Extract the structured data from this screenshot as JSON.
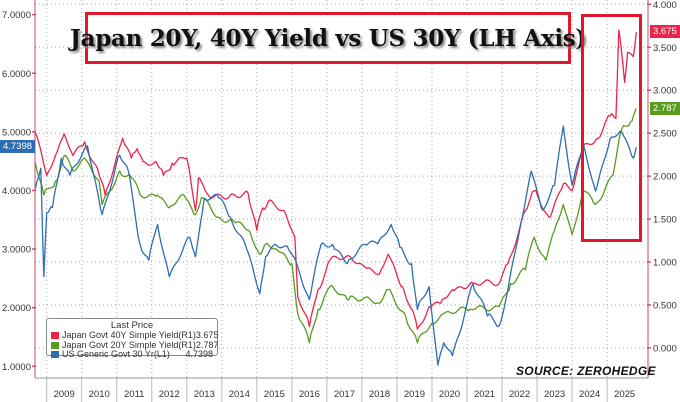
{
  "chart_data": {
    "type": "line",
    "title": "Japan 20Y, 40Y Yield vs US 30Y (LH Axis)",
    "source": "SOURCE: ZEROHEDGE",
    "legend": {
      "header": "Last Price",
      "placement": "bottom-left"
    },
    "x_ticks": [
      "2009",
      "2010",
      "2011",
      "2012",
      "2013",
      "2014",
      "2015",
      "2016",
      "2017",
      "2018",
      "2019",
      "2020",
      "2021",
      "2022",
      "2023",
      "2024",
      "2025"
    ],
    "xlim": [
      "2008-09",
      "2026-03"
    ],
    "left_axis": {
      "ylim": [
        0.8,
        7.25
      ],
      "ticks": [
        "1.0000",
        "2.0000",
        "3.0000",
        "4.0000",
        "5.0000",
        "6.0000",
        "7.0000"
      ]
    },
    "right_axis": {
      "ylim": [
        -0.35,
        4.05
      ],
      "ticks": [
        "0.000",
        "0.500",
        "1.000",
        "1.500",
        "2.000",
        "2.500",
        "3.000",
        "3.500",
        "4.000"
      ]
    },
    "grid": true,
    "highlight_box": {
      "from": "2024-05",
      "to": "2025-12",
      "color": "#e0182d"
    },
    "series": [
      {
        "name": "Japan Govt 40Y Simple Yield",
        "axis_label": "(R1)",
        "last": "3.675",
        "axis": "right",
        "color": "#e8264a",
        "points": [
          [
            "2008-09",
            2.52
          ],
          [
            "2009-01",
            2.01
          ],
          [
            "2009-04",
            2.24
          ],
          [
            "2009-07",
            2.49
          ],
          [
            "2009-10",
            2.24
          ],
          [
            "2010-02",
            2.4
          ],
          [
            "2010-07",
            2.01
          ],
          [
            "2010-09",
            1.78
          ],
          [
            "2011-03",
            2.44
          ],
          [
            "2011-06",
            2.21
          ],
          [
            "2011-08",
            2.32
          ],
          [
            "2011-10",
            2.17
          ],
          [
            "2012-03",
            2.13
          ],
          [
            "2012-05",
            2.01
          ],
          [
            "2012-08",
            2.15
          ],
          [
            "2013-01",
            2.21
          ],
          [
            "2013-04",
            1.6
          ],
          [
            "2013-05",
            1.98
          ],
          [
            "2013-09",
            1.75
          ],
          [
            "2014-04",
            1.78
          ],
          [
            "2014-10",
            1.8
          ],
          [
            "2015-01",
            1.37
          ],
          [
            "2015-03",
            1.63
          ],
          [
            "2015-05",
            1.71
          ],
          [
            "2015-11",
            1.55
          ],
          [
            "2016-02",
            1.29
          ],
          [
            "2016-03",
            0.6
          ],
          [
            "2016-07",
            0.25
          ],
          [
            "2016-10",
            0.68
          ],
          [
            "2017-02",
            1.02
          ],
          [
            "2017-09",
            1.06
          ],
          [
            "2018-02",
            0.94
          ],
          [
            "2018-07",
            0.86
          ],
          [
            "2018-10",
            1.09
          ],
          [
            "2019-03",
            0.71
          ],
          [
            "2019-07",
            0.37
          ],
          [
            "2019-08",
            0.22
          ],
          [
            "2019-12",
            0.48
          ],
          [
            "2020-04",
            0.52
          ],
          [
            "2020-08",
            0.68
          ],
          [
            "2021-03",
            0.75
          ],
          [
            "2021-12",
            0.75
          ],
          [
            "2022-03",
            0.98
          ],
          [
            "2022-09",
            1.6
          ],
          [
            "2022-12",
            1.83
          ],
          [
            "2023-05",
            1.52
          ],
          [
            "2023-10",
            1.91
          ],
          [
            "2024-01",
            1.83
          ],
          [
            "2024-05",
            2.36
          ],
          [
            "2024-10",
            2.44
          ],
          [
            "2025-02",
            2.7
          ],
          [
            "2025-04",
            2.67
          ],
          [
            "2025-05",
            3.7
          ],
          [
            "2025-07",
            3.09
          ],
          [
            "2025-08",
            3.44
          ],
          [
            "2025-10",
            3.39
          ],
          [
            "2025-11",
            3.675
          ]
        ]
      },
      {
        "name": "Japan Govt 20Y Simple Yield",
        "axis_label": "(R1)",
        "last": "2.787",
        "axis": "right",
        "color": "#5a9a1e",
        "points": [
          [
            "2008-09",
            2.17
          ],
          [
            "2008-12",
            1.78
          ],
          [
            "2009-04",
            1.94
          ],
          [
            "2009-07",
            2.24
          ],
          [
            "2009-10",
            2.06
          ],
          [
            "2010-02",
            2.21
          ],
          [
            "2010-07",
            1.94
          ],
          [
            "2010-08",
            1.67
          ],
          [
            "2011-02",
            2.06
          ],
          [
            "2011-06",
            1.98
          ],
          [
            "2011-09",
            1.78
          ],
          [
            "2012-03",
            1.78
          ],
          [
            "2012-07",
            1.63
          ],
          [
            "2012-12",
            1.78
          ],
          [
            "2013-04",
            1.55
          ],
          [
            "2013-06",
            1.75
          ],
          [
            "2013-12",
            1.52
          ],
          [
            "2014-05",
            1.48
          ],
          [
            "2014-10",
            1.37
          ],
          [
            "2015-02",
            1.09
          ],
          [
            "2015-04",
            1.21
          ],
          [
            "2015-08",
            1.14
          ],
          [
            "2016-01",
            0.98
          ],
          [
            "2016-03",
            0.4
          ],
          [
            "2016-07",
            0.06
          ],
          [
            "2016-10",
            0.45
          ],
          [
            "2017-02",
            0.71
          ],
          [
            "2017-08",
            0.56
          ],
          [
            "2017-09",
            0.6
          ],
          [
            "2018-07",
            0.52
          ],
          [
            "2018-10",
            0.68
          ],
          [
            "2019-04",
            0.37
          ],
          [
            "2019-08",
            0.06
          ],
          [
            "2020-01",
            0.29
          ],
          [
            "2020-05",
            0.4
          ],
          [
            "2021-02",
            0.45
          ],
          [
            "2021-12",
            0.48
          ],
          [
            "2022-04",
            0.75
          ],
          [
            "2022-09",
            0.91
          ],
          [
            "2022-12",
            1.29
          ],
          [
            "2023-04",
            1.02
          ],
          [
            "2023-07",
            1.37
          ],
          [
            "2023-10",
            1.67
          ],
          [
            "2024-01",
            1.32
          ],
          [
            "2024-05",
            1.83
          ],
          [
            "2024-09",
            1.67
          ],
          [
            "2025-03",
            2.01
          ],
          [
            "2025-06",
            2.55
          ],
          [
            "2025-09",
            2.63
          ],
          [
            "2025-11",
            2.787
          ]
        ]
      },
      {
        "name": "US Generic Govt 30 Yr",
        "axis_label": "(L1)",
        "last": "4.7398",
        "axis": "left",
        "color": "#2e6db0",
        "points": [
          [
            "2008-09",
            4.0
          ],
          [
            "2008-11",
            4.38
          ],
          [
            "2008-12",
            2.53
          ],
          [
            "2009-01",
            3.62
          ],
          [
            "2009-03",
            3.71
          ],
          [
            "2009-06",
            4.55
          ],
          [
            "2009-09",
            4.26
          ],
          [
            "2010-03",
            4.76
          ],
          [
            "2010-08",
            3.59
          ],
          [
            "2011-02",
            4.6
          ],
          [
            "2011-05",
            4.33
          ],
          [
            "2011-09",
            3.08
          ],
          [
            "2011-12",
            2.81
          ],
          [
            "2012-03",
            3.42
          ],
          [
            "2012-07",
            2.53
          ],
          [
            "2013-02",
            3.2
          ],
          [
            "2013-04",
            2.87
          ],
          [
            "2013-07",
            3.87
          ],
          [
            "2013-12",
            3.87
          ],
          [
            "2014-04",
            3.54
          ],
          [
            "2014-09",
            3.08
          ],
          [
            "2015-02",
            2.24
          ],
          [
            "2015-04",
            2.87
          ],
          [
            "2015-07",
            3.08
          ],
          [
            "2015-12",
            2.98
          ],
          [
            "2016-03",
            2.7
          ],
          [
            "2016-07",
            2.14
          ],
          [
            "2016-11",
            3.08
          ],
          [
            "2017-03",
            3.08
          ],
          [
            "2017-08",
            2.75
          ],
          [
            "2018-02",
            3.08
          ],
          [
            "2018-07",
            3.15
          ],
          [
            "2018-11",
            3.42
          ],
          [
            "2019-02",
            3.03
          ],
          [
            "2019-06",
            2.75
          ],
          [
            "2019-08",
            1.97
          ],
          [
            "2019-12",
            2.36
          ],
          [
            "2020-03",
            1.02
          ],
          [
            "2020-05",
            1.4
          ],
          [
            "2020-08",
            1.18
          ],
          [
            "2021-03",
            2.41
          ],
          [
            "2021-08",
            1.86
          ],
          [
            "2021-12",
            1.69
          ],
          [
            "2022-03",
            2.31
          ],
          [
            "2022-07",
            3.32
          ],
          [
            "2022-11",
            4.33
          ],
          [
            "2023-03",
            3.66
          ],
          [
            "2023-07",
            4.09
          ],
          [
            "2023-10",
            5.1
          ],
          [
            "2024-01",
            4.09
          ],
          [
            "2024-05",
            4.76
          ],
          [
            "2024-09",
            3.99
          ],
          [
            "2025-02",
            4.88
          ],
          [
            "2025-06",
            5.0
          ],
          [
            "2025-10",
            4.55
          ],
          [
            "2025-11",
            4.7398
          ]
        ]
      }
    ]
  }
}
